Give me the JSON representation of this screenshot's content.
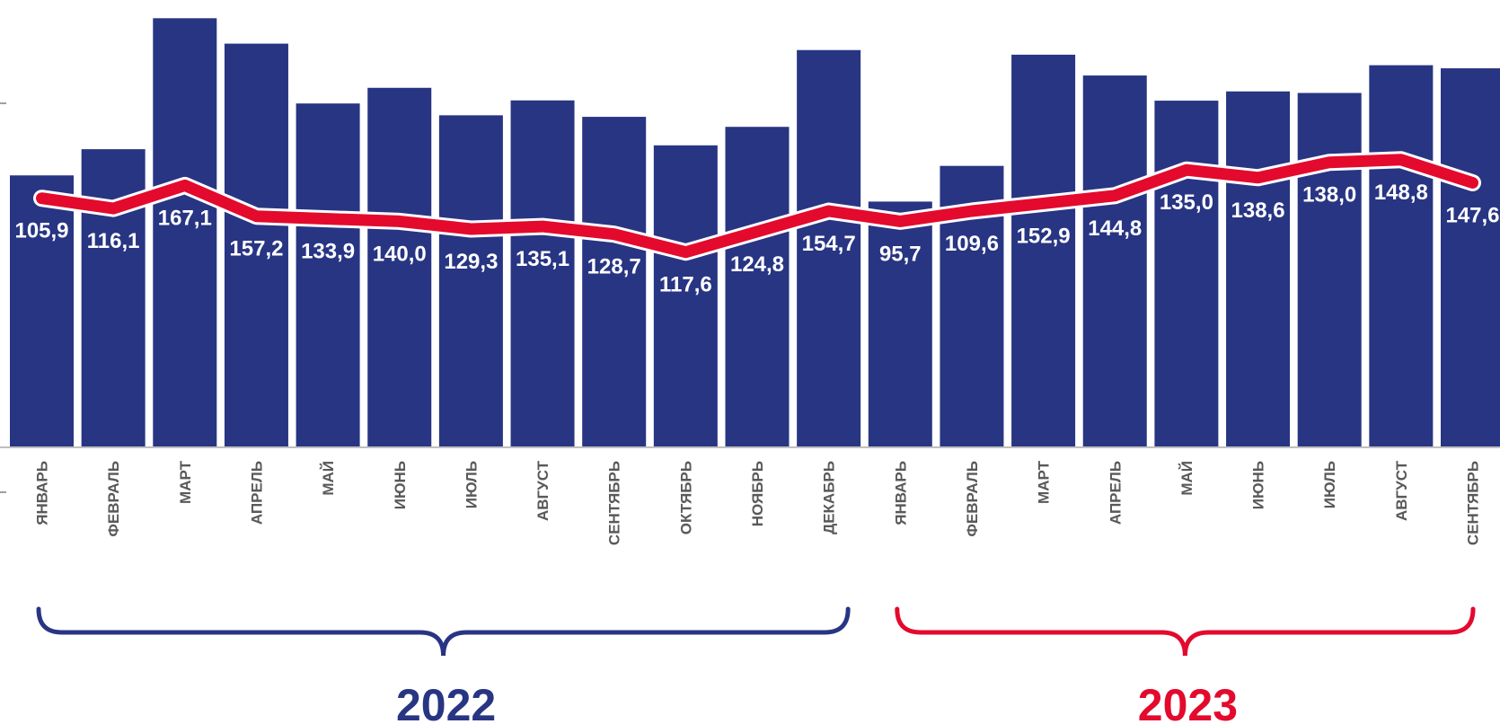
{
  "chart_data": {
    "type": "bar",
    "categories": [
      "ЯНВАРЬ",
      "ФЕВРАЛЬ",
      "МАРТ",
      "АПРЕЛЬ",
      "МАЙ",
      "ИЮНЬ",
      "ИЮЛЬ",
      "АВГУСТ",
      "СЕНТЯБРЬ",
      "ОКТЯБРЬ",
      "НОЯБРЬ",
      "ДЕКАБРЬ",
      "ЯНВАРЬ",
      "ФЕВРАЛЬ",
      "МАРТ",
      "АПРЕЛЬ",
      "МАЙ",
      "ИЮНЬ",
      "ИЮЛЬ",
      "АВГУСТ",
      "СЕНТЯБРЬ"
    ],
    "series": [
      {
        "type": "bar",
        "color": "#283583",
        "values": [
          105.9,
          116.1,
          167.1,
          157.2,
          133.9,
          140.0,
          129.3,
          135.1,
          128.7,
          117.6,
          124.8,
          154.7,
          95.7,
          109.6,
          152.9,
          144.8,
          135.0,
          138.6,
          138.0,
          148.8,
          147.6
        ]
      },
      {
        "type": "line",
        "color": "#e30a2d",
        "values": [
          97,
          93,
          102,
          90,
          89,
          88,
          85,
          86,
          83,
          76,
          84,
          92,
          88,
          92,
          95,
          98,
          108,
          105,
          111,
          112,
          103
        ]
      }
    ],
    "data_labels": [
      "105,9",
      "116,1",
      "167,1",
      "157,2",
      "133,9",
      "140,0",
      "129,3",
      "135,1",
      "128,7",
      "117,6",
      "124,8",
      "154,7",
      "95,7",
      "109,6",
      "152,9",
      "144,8",
      "135,0",
      "138,6",
      "138,0",
      "148,8",
      "147,6"
    ],
    "ylim": [
      0,
      170
    ],
    "grid": false,
    "groups": [
      {
        "label": "2022",
        "from": 0,
        "to": 11,
        "color": "#283583"
      },
      {
        "label": "2023",
        "from": 12,
        "to": 20,
        "color": "#e30a2d"
      }
    ]
  }
}
